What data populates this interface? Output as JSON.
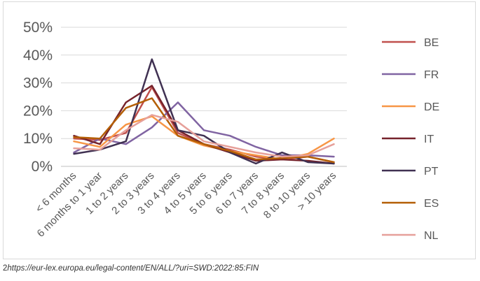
{
  "chart_data": {
    "type": "line",
    "categories": [
      "< 6 months",
      "6 months to 1 year",
      "1 to 2 years",
      "2 to 3 years",
      "3 to 4 years",
      "4 to 5 years",
      "5 to 6 years",
      "6 to 7 years",
      "7 to 8 years",
      "8 to 10 years",
      "> 10 years"
    ],
    "ylim": [
      0,
      50
    ],
    "yticks": [
      "0%",
      "10%",
      "20%",
      "30%",
      "40%",
      "50%"
    ],
    "ytick_values": [
      0,
      10,
      20,
      30,
      40,
      50
    ],
    "grid": true,
    "legend_position": "right",
    "series": [
      {
        "name": "BE",
        "color": "#c0504d",
        "values": [
          10.0,
          9.5,
          12.0,
          28.5,
          12.0,
          8.0,
          6.0,
          3.5,
          2.5,
          3.5,
          1.5
        ]
      },
      {
        "name": "FR",
        "color": "#8064a2",
        "values": [
          5.0,
          10.0,
          8.0,
          14.0,
          23.0,
          13.0,
          11.0,
          7.0,
          4.0,
          4.0,
          3.5
        ]
      },
      {
        "name": "DE",
        "color": "#f79646",
        "values": [
          9.0,
          7.0,
          15.0,
          18.0,
          11.0,
          7.5,
          5.5,
          4.0,
          2.5,
          4.5,
          10.0
        ]
      },
      {
        "name": "IT",
        "color": "#76232b",
        "values": [
          11.0,
          8.0,
          23.0,
          29.0,
          13.0,
          8.0,
          5.0,
          2.0,
          2.5,
          2.0,
          1.0
        ]
      },
      {
        "name": "PT",
        "color": "#403152",
        "values": [
          4.5,
          6.0,
          9.0,
          38.5,
          13.0,
          11.0,
          5.0,
          1.0,
          5.0,
          1.5,
          1.0
        ]
      },
      {
        "name": "ES",
        "color": "#b45f06",
        "values": [
          10.5,
          10.0,
          21.0,
          24.5,
          11.0,
          8.0,
          5.5,
          2.5,
          3.0,
          3.5,
          1.5
        ]
      },
      {
        "name": "NL",
        "color": "#e6a09a",
        "values": [
          6.5,
          6.0,
          13.0,
          18.5,
          16.0,
          9.0,
          7.0,
          5.0,
          3.5,
          4.0,
          8.0
        ]
      }
    ]
  },
  "footnote": {
    "number": "2",
    "url": "https://eur-lex.europa.eu/legal-content/EN/ALL/?uri=SWD:2022:85:FIN"
  }
}
